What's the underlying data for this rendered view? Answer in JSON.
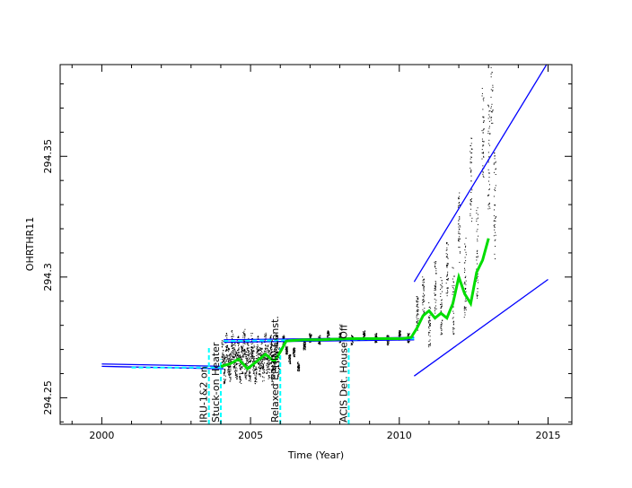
{
  "chart_data": {
    "type": "scatter",
    "xlabel": "Time (Year)",
    "ylabel": "OHRTHR11",
    "xlim": [
      1998.6,
      2015.8
    ],
    "ylim": [
      294.239,
      294.388
    ],
    "x_ticks": [
      2000,
      2005,
      2010,
      2015
    ],
    "y_ticks": [
      294.25,
      294.3,
      294.35
    ],
    "x_tick_labels": [
      "2000",
      "2005",
      "2010",
      "2015"
    ],
    "y_tick_labels": [
      "294.25",
      "294.3",
      "294.35"
    ],
    "events": [
      {
        "label": "IRU-1&2 on",
        "x": 2003.6
      },
      {
        "label": "Stuck-on Heater",
        "x": 2004.0
      },
      {
        "label": "Relaxed EPHIN Const.",
        "x": 2006.0
      },
      {
        "label": "ACIS Det. House Off",
        "x": 2008.3
      }
    ],
    "series": [
      {
        "color": "#0000ff",
        "style": "line",
        "segments": [
          {
            "x": [
              2000.0,
              2004.1
            ],
            "y": [
              294.264,
              294.263
            ]
          },
          {
            "x": [
              2000.0,
              2004.1
            ],
            "y": [
              294.263,
              294.262
            ]
          },
          {
            "x": [
              2004.1,
              2010.5
            ],
            "y": [
              294.274,
              294.275
            ]
          },
          {
            "x": [
              2004.1,
              2010.5
            ],
            "y": [
              294.273,
              294.274
            ]
          },
          {
            "x": [
              2010.5,
              2015.0
            ],
            "y": [
              294.298,
              294.389
            ]
          },
          {
            "x": [
              2010.5,
              2015.0
            ],
            "y": [
              294.259,
              294.299
            ]
          }
        ]
      },
      {
        "color": "#00ffff",
        "style": "dashed",
        "segments": [
          {
            "x": [
              2003.6,
              2003.6
            ],
            "y": [
              294.239,
              294.271
            ]
          },
          {
            "x": [
              2004.0,
              2004.0
            ],
            "y": [
              294.239,
              294.266
            ]
          },
          {
            "x": [
              2006.0,
              2006.0
            ],
            "y": [
              294.239,
              294.271
            ]
          },
          {
            "x": [
              2008.3,
              2008.3
            ],
            "y": [
              294.239,
              294.271
            ]
          },
          {
            "x": [
              2001.0,
              2004.1
            ],
            "y": [
              294.2625,
              294.2625
            ]
          },
          {
            "x": [
              2004.1,
              2010.5
            ],
            "y": [
              294.2735,
              294.2745
            ]
          }
        ]
      },
      {
        "color": "#00dd00",
        "style": "line",
        "x": [
          2004.0,
          2004.3,
          2004.6,
          2004.9,
          2005.2,
          2005.5,
          2005.8,
          2006.0,
          2006.2,
          2006.5,
          2006.8,
          2007.1,
          2007.4,
          2007.7,
          2008.0,
          2008.3,
          2008.6,
          2008.9,
          2009.2,
          2009.5,
          2009.8,
          2010.1,
          2010.4,
          2010.6,
          2010.8,
          2011.0,
          2011.2,
          2011.4,
          2011.6,
          2011.8,
          2012.0,
          2012.2,
          2012.4,
          2012.6,
          2012.8,
          2013.0
        ],
        "y": [
          294.263,
          294.264,
          294.266,
          294.262,
          294.265,
          294.268,
          294.265,
          294.269,
          294.2735,
          294.2738,
          294.274,
          294.274,
          294.274,
          294.2742,
          294.2743,
          294.2745,
          294.2745,
          294.2745,
          294.2745,
          294.2745,
          294.2745,
          294.2745,
          294.275,
          294.279,
          294.284,
          294.286,
          294.283,
          294.285,
          294.283,
          294.289,
          294.3,
          294.293,
          294.289,
          294.302,
          294.307,
          294.316
        ]
      },
      {
        "color": "#000000",
        "style": "points",
        "x": [
          2004.05,
          2004.12,
          2004.18,
          2004.25,
          2004.31,
          2004.38,
          2004.44,
          2004.51,
          2004.57,
          2004.64,
          2004.7,
          2004.77,
          2004.83,
          2004.9,
          2004.96,
          2005.03,
          2005.09,
          2005.16,
          2005.22,
          2005.29,
          2005.35,
          2005.42,
          2005.48,
          2005.55,
          2005.61,
          2005.68,
          2005.74,
          2005.81,
          2005.87,
          2005.94,
          2006.1,
          2006.2,
          2006.3,
          2006.45,
          2006.6,
          2006.8,
          2007.0,
          2007.3,
          2007.6,
          2008.0,
          2008.4,
          2008.8,
          2009.2,
          2009.6,
          2010.0,
          2010.3,
          2010.6,
          2010.8,
          2011.0,
          2011.2,
          2011.4,
          2011.6,
          2011.8,
          2012.0,
          2012.2,
          2012.4,
          2012.6,
          2012.8,
          2013.0,
          2013.1,
          2013.2
        ],
        "y": [
          294.268,
          294.262,
          294.271,
          294.265,
          294.263,
          294.272,
          294.267,
          294.264,
          294.27,
          294.262,
          294.266,
          294.273,
          294.264,
          294.269,
          294.263,
          294.271,
          294.266,
          294.262,
          294.27,
          294.265,
          294.268,
          294.263,
          294.272,
          294.266,
          294.264,
          294.27,
          294.262,
          294.267,
          294.271,
          294.265,
          294.274,
          294.27,
          294.266,
          294.269,
          294.263,
          294.272,
          294.275,
          294.274,
          294.276,
          294.275,
          294.274,
          294.276,
          294.275,
          294.274,
          294.276,
          294.275,
          294.285,
          294.292,
          294.28,
          294.296,
          294.288,
          294.305,
          294.29,
          294.32,
          294.3,
          294.34,
          294.31,
          294.36,
          294.35,
          294.385,
          294.33
        ]
      }
    ]
  }
}
